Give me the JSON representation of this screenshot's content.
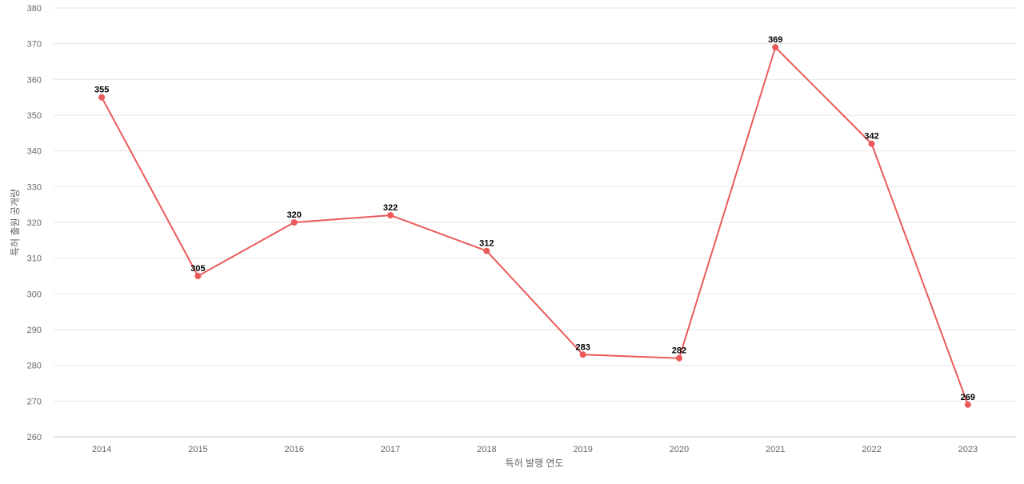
{
  "chart_data": {
    "type": "line",
    "title": "",
    "xlabel": "특허 발행 연도",
    "ylabel": "특허 출원 공개량",
    "categories": [
      "2014",
      "2015",
      "2016",
      "2017",
      "2018",
      "2019",
      "2020",
      "2021",
      "2022",
      "2023"
    ],
    "series": [
      {
        "values": [
          355,
          305,
          320,
          322,
          312,
          283,
          282,
          369,
          342,
          269
        ],
        "color": "#eb5a5a"
      }
    ],
    "ylim": [
      260,
      380
    ],
    "yticks": [
      260,
      270,
      280,
      290,
      300,
      310,
      320,
      330,
      340,
      350,
      360,
      370,
      380
    ],
    "grid": true,
    "legend": "none",
    "data_labels": true
  }
}
